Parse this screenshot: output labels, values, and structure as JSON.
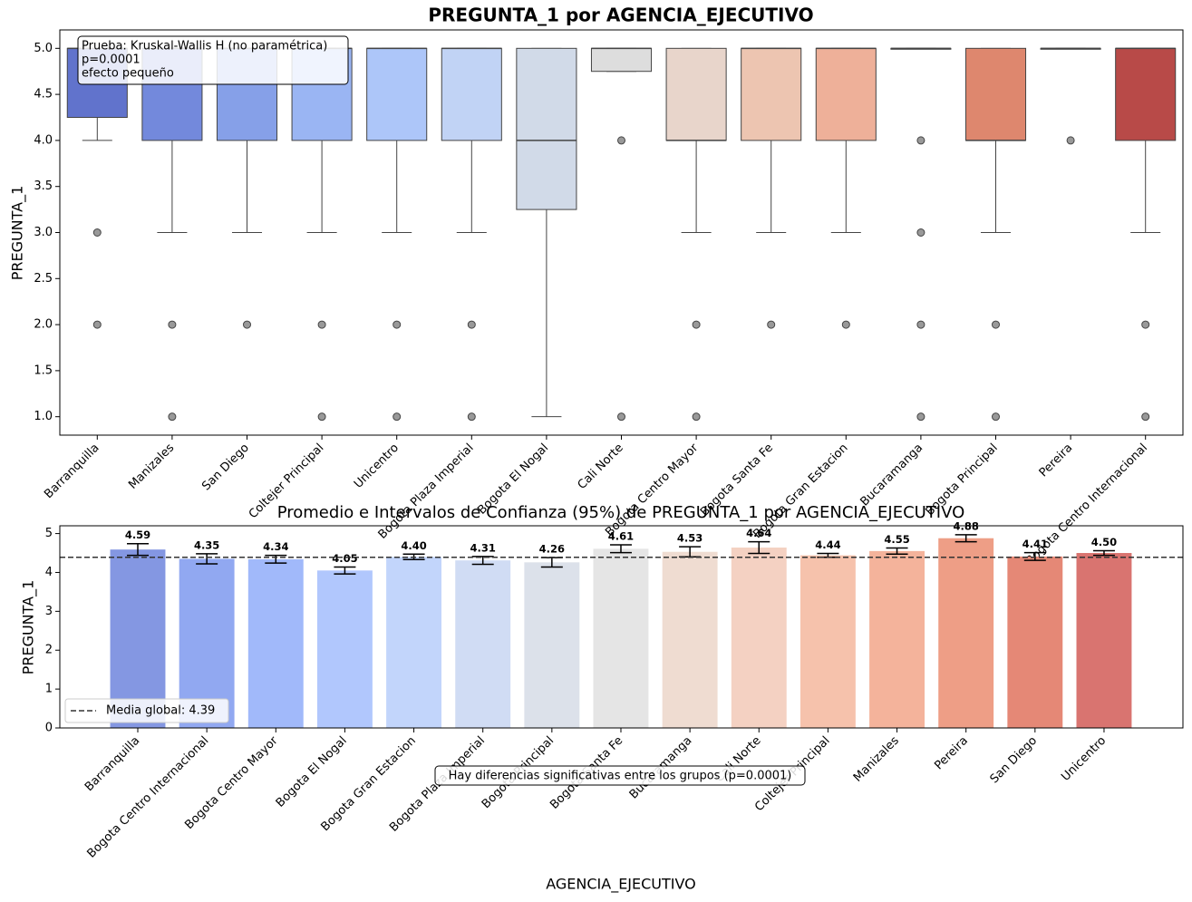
{
  "chart_data": [
    {
      "type": "box",
      "title": "PREGUNTA_1 por AGENCIA_EJECUTIVO",
      "y_label": "PREGUNTA_1",
      "categories": [
        "Barranquilla",
        "Manizales",
        "San Diego",
        "Coltejer Principal",
        "Unicentro",
        "Bogota Plaza Imperial",
        "Bogota El Nogal",
        "Cali Norte",
        "Bogota Centro Mayor",
        "Bogota Santa Fe",
        "Bogota Gran Estacion",
        "Bucaramanga",
        "Bogota Principal",
        "Pereira",
        "Bogota Centro Internacional"
      ],
      "colors": [
        "#6173cc",
        "#7389dc",
        "#86a0e8",
        "#9ab5f3",
        "#adc6f9",
        "#c1d3f5",
        "#d1dae8",
        "#dddddd",
        "#e8d5cb",
        "#edc5b1",
        "#eeb099",
        "#e99a80",
        "#de876e",
        "#cd6f5b",
        "#b84a48"
      ],
      "boxes": [
        {
          "q1": 4.25,
          "median": 5,
          "q3": 5,
          "whislo": 4,
          "whishi": 5,
          "fliers": [
            3,
            2
          ]
        },
        {
          "q1": 4,
          "median": 5,
          "q3": 5,
          "whislo": 3,
          "whishi": 5,
          "fliers": [
            2,
            1
          ]
        },
        {
          "q1": 4,
          "median": 5,
          "q3": 5,
          "whislo": 3,
          "whishi": 5,
          "fliers": [
            2
          ]
        },
        {
          "q1": 4,
          "median": 5,
          "q3": 5,
          "whislo": 3,
          "whishi": 5,
          "fliers": [
            2,
            1
          ]
        },
        {
          "q1": 4,
          "median": 5,
          "q3": 5,
          "whislo": 3,
          "whishi": 5,
          "fliers": [
            2,
            1
          ]
        },
        {
          "q1": 4,
          "median": 5,
          "q3": 5,
          "whislo": 3,
          "whishi": 5,
          "fliers": [
            2,
            1
          ]
        },
        {
          "q1": 3.25,
          "median": 4,
          "q3": 5,
          "whislo": 1,
          "whishi": 5,
          "fliers": []
        },
        {
          "q1": 4.75,
          "median": 5,
          "q3": 5,
          "whislo": 4.75,
          "whishi": 5,
          "fliers": [
            4,
            1
          ]
        },
        {
          "q1": 4,
          "median": 4,
          "q3": 5,
          "whislo": 3,
          "whishi": 5,
          "fliers": [
            2,
            1
          ]
        },
        {
          "q1": 4,
          "median": 5,
          "q3": 5,
          "whislo": 3,
          "whishi": 5,
          "fliers": [
            2
          ]
        },
        {
          "q1": 4,
          "median": 5,
          "q3": 5,
          "whislo": 3,
          "whishi": 5,
          "fliers": [
            2
          ]
        },
        {
          "q1": 5,
          "median": 5,
          "q3": 5,
          "whislo": 5,
          "whishi": 5,
          "fliers": [
            4,
            3,
            2,
            1
          ]
        },
        {
          "q1": 4,
          "median": 4,
          "q3": 5,
          "whislo": 3,
          "whishi": 5,
          "fliers": [
            2,
            1
          ]
        },
        {
          "q1": 5,
          "median": 5,
          "q3": 5,
          "whislo": 5,
          "whishi": 5,
          "fliers": [
            4
          ]
        },
        {
          "q1": 4,
          "median": 5,
          "q3": 5,
          "whislo": 3,
          "whishi": 5,
          "fliers": [
            2,
            1
          ]
        }
      ],
      "ylim": [
        0.8,
        5.2
      ],
      "yticks": [
        {
          "value": 1,
          "label": "1.0"
        },
        {
          "value": 1.5,
          "label": "1.5"
        },
        {
          "value": 2,
          "label": "2.0"
        },
        {
          "value": 2.5,
          "label": "2.5"
        },
        {
          "value": 3,
          "label": "3.0"
        },
        {
          "value": 3.5,
          "label": "3.5"
        },
        {
          "value": 4,
          "label": "4.0"
        },
        {
          "value": 4.5,
          "label": "4.5"
        },
        {
          "value": 5,
          "label": "5.0"
        }
      ],
      "annotation": [
        "Prueba: Kruskal-Wallis H (no paramétrica)",
        "p=0.0001",
        "efecto pequeño"
      ]
    },
    {
      "type": "bar",
      "title": "Promedio e Intervalos de Confianza (95%) de PREGUNTA_1 por AGENCIA_EJECUTIVO",
      "x_label": "AGENCIA_EJECUTIVO",
      "y_label": "PREGUNTA_1",
      "categories": [
        "Barranquilla",
        "Bogota Centro Internacional",
        "Bogota Centro Mayor",
        "Bogota El Nogal",
        "Bogota Gran Estacion",
        "Bogota Plaza Imperial",
        "Bogota Principal",
        "Bogota Santa Fe",
        "Bucaramanga",
        "Cali Norte",
        "Coltejer Principal",
        "Manizales",
        "Pereira",
        "San Diego",
        "Unicentro"
      ],
      "values": [
        4.59,
        4.35,
        4.34,
        4.05,
        4.4,
        4.31,
        4.26,
        4.61,
        4.53,
        4.64,
        4.44,
        4.55,
        4.88,
        4.41,
        4.5
      ],
      "value_labels": [
        "4.59",
        "4.35",
        "4.34",
        "4.05",
        "4.40",
        "4.31",
        "4.26",
        "4.61",
        "4.53",
        "4.64",
        "4.44",
        "4.55",
        "4.88",
        "4.41",
        "4.50"
      ],
      "errors": [
        0.15,
        0.13,
        0.1,
        0.09,
        0.07,
        0.1,
        0.12,
        0.1,
        0.13,
        0.15,
        0.05,
        0.08,
        0.09,
        0.1,
        0.06
      ],
      "colors": [
        "#8497e2",
        "#91a8f1",
        "#a1b9fa",
        "#b1c7fd",
        "#c2d5fb",
        "#d0dcf4",
        "#dce1ea",
        "#e5e5e5",
        "#efdcd1",
        "#f4d1c2",
        "#f6c2ac",
        "#f4b39b",
        "#ee9e86",
        "#e58876",
        "#d97470"
      ],
      "mean_line": 4.39,
      "mean_label": "Media global: 4.39",
      "ylim": [
        0,
        5.2
      ],
      "yticks": [
        0,
        1,
        2,
        3,
        4,
        5
      ],
      "annotation": "Hay diferencias significativas entre los grupos (p=0.0001)"
    }
  ]
}
